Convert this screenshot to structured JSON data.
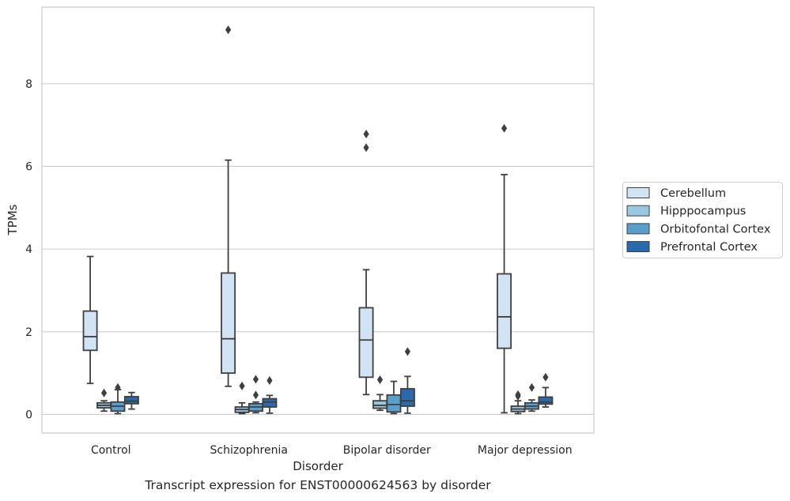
{
  "chart_data": {
    "type": "box",
    "title": "",
    "xlabel": "Disorder",
    "ylabel": "TPMs",
    "caption": "Transcript expression for ENST00000624563 by disorder",
    "ylim": [
      -0.45,
      9.85
    ],
    "yticks": [
      0,
      2,
      4,
      6,
      8
    ],
    "grid": true,
    "legend_position": "right",
    "categories": [
      "Control",
      "Schizophrenia",
      "Bipolar disorder",
      "Major depression"
    ],
    "series": [
      {
        "name": "Cerebellum",
        "color": "#d2e3f3",
        "boxes": [
          {
            "whislo": 0.75,
            "q1": 1.55,
            "med": 1.88,
            "q3": 2.5,
            "whishi": 3.82,
            "fliers": []
          },
          {
            "whislo": 0.68,
            "q1": 1.0,
            "med": 1.83,
            "q3": 3.42,
            "whishi": 6.15,
            "fliers": [
              9.3
            ]
          },
          {
            "whislo": 0.48,
            "q1": 0.9,
            "med": 1.8,
            "q3": 2.58,
            "whishi": 3.5,
            "fliers": [
              6.45,
              6.78
            ]
          },
          {
            "whislo": 0.04,
            "q1": 1.6,
            "med": 2.36,
            "q3": 3.4,
            "whishi": 5.8,
            "fliers": [
              6.92
            ]
          }
        ]
      },
      {
        "name": "Hipppocampus",
        "color": "#9ac8e0",
        "boxes": [
          {
            "whislo": 0.08,
            "q1": 0.16,
            "med": 0.22,
            "q3": 0.28,
            "whishi": 0.33,
            "fliers": [
              0.52
            ]
          },
          {
            "whislo": 0.02,
            "q1": 0.05,
            "med": 0.12,
            "q3": 0.18,
            "whishi": 0.28,
            "fliers": [
              0.69
            ]
          },
          {
            "whislo": 0.1,
            "q1": 0.15,
            "med": 0.22,
            "q3": 0.33,
            "whishi": 0.48,
            "fliers": [
              0.84
            ]
          },
          {
            "whislo": 0.02,
            "q1": 0.07,
            "med": 0.13,
            "q3": 0.2,
            "whishi": 0.33,
            "fliers": [
              0.44,
              0.48
            ]
          }
        ]
      },
      {
        "name": "Orbitofontal Cortex",
        "color": "#5a9fcc",
        "boxes": [
          {
            "whislo": 0.02,
            "q1": 0.08,
            "med": 0.2,
            "q3": 0.3,
            "whishi": 0.6,
            "fliers": [
              0.65
            ]
          },
          {
            "whislo": 0.04,
            "q1": 0.08,
            "med": 0.18,
            "q3": 0.26,
            "whishi": 0.3,
            "fliers": [
              0.47,
              0.85
            ]
          },
          {
            "whislo": 0.02,
            "q1": 0.06,
            "med": 0.24,
            "q3": 0.47,
            "whishi": 0.8,
            "fliers": []
          },
          {
            "whislo": 0.08,
            "q1": 0.13,
            "med": 0.2,
            "q3": 0.28,
            "whishi": 0.35,
            "fliers": [
              0.65
            ]
          }
        ]
      },
      {
        "name": "Prefrontal Cortex",
        "color": "#2a69ab",
        "boxes": [
          {
            "whislo": 0.13,
            "q1": 0.26,
            "med": 0.32,
            "q3": 0.43,
            "whishi": 0.53,
            "fliers": []
          },
          {
            "whislo": 0.03,
            "q1": 0.18,
            "med": 0.3,
            "q3": 0.38,
            "whishi": 0.46,
            "fliers": [
              0.82
            ]
          },
          {
            "whislo": 0.03,
            "q1": 0.2,
            "med": 0.33,
            "q3": 0.62,
            "whishi": 0.92,
            "fliers": [
              1.52
            ]
          },
          {
            "whislo": 0.18,
            "q1": 0.25,
            "med": 0.3,
            "q3": 0.42,
            "whishi": 0.65,
            "fliers": [
              0.9
            ]
          }
        ]
      }
    ]
  }
}
